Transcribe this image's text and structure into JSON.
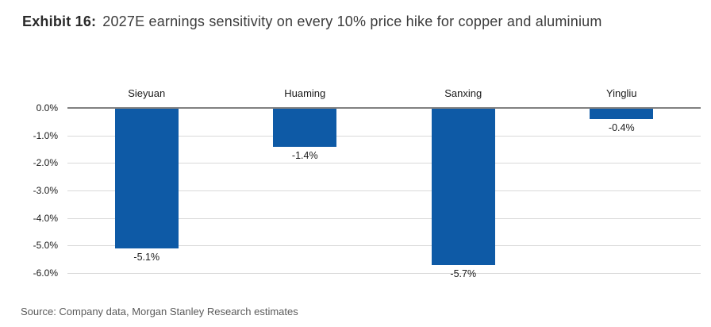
{
  "title": {
    "exhibit_label": "Exhibit 16:",
    "text": "2027E earnings sensitivity on every 10% price hike for copper and aluminium"
  },
  "source_note": "Source: Company data, Morgan Stanley Research estimates",
  "colors": {
    "bar": "#0e5aa6",
    "zero_line": "#808080",
    "gridline": "#d9d9d9"
  },
  "chart_data": {
    "type": "bar",
    "title": "2027E earnings sensitivity on every 10% price hike for copper and aluminium",
    "categories": [
      "Sieyuan",
      "Huaming",
      "Sanxing",
      "Yingliu"
    ],
    "values": [
      -5.1,
      -1.4,
      -5.7,
      -0.4
    ],
    "value_labels": [
      "-5.1%",
      "-1.4%",
      "-5.7%",
      "-0.4%"
    ],
    "unit": "%",
    "ylim": [
      -6,
      0
    ],
    "yticks": [
      0,
      -1,
      -2,
      -3,
      -4,
      -5,
      -6
    ],
    "ytick_labels": [
      "0.0%",
      "-1.0%",
      "-2.0%",
      "-3.0%",
      "-4.0%",
      "-5.0%",
      "-6.0%"
    ],
    "grid": true,
    "legend": false,
    "category_label_position": "above-axis",
    "value_label_position": "below-bar",
    "xlabel": "",
    "ylabel": ""
  }
}
